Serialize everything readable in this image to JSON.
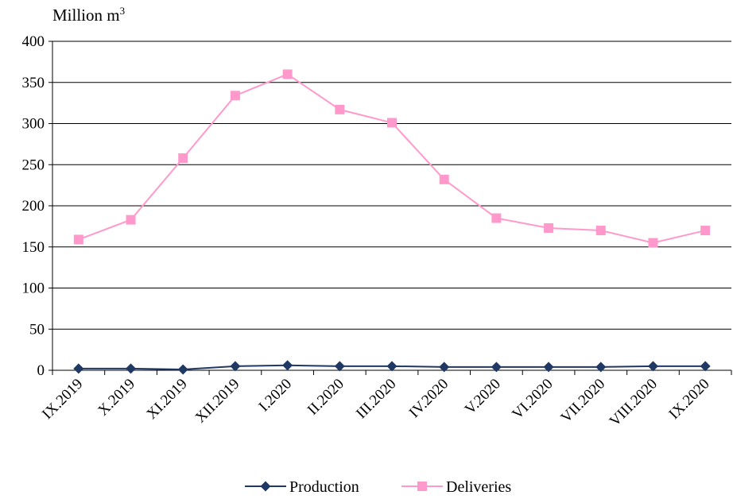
{
  "chart_data": {
    "type": "line",
    "ylabel": "Million m",
    "ylabel_sup": "3",
    "ylim": [
      0,
      400
    ],
    "yticks": [
      0,
      50,
      100,
      150,
      200,
      250,
      300,
      350,
      400
    ],
    "grid": true,
    "legend_position": "bottom-center",
    "categories": [
      "IX.2019",
      "X.2019",
      "XI.2019",
      "XII.2019",
      "I.2020",
      "II.2020",
      "III.2020",
      "IV.2020",
      "V.2020",
      "VI.2020",
      "VII.2020",
      "VIII.2020",
      "IX.2020"
    ],
    "series": [
      {
        "name": "Production",
        "color": "#1F3864",
        "marker": "diamond",
        "values": [
          2,
          2,
          1,
          5,
          6,
          5,
          5,
          4,
          4,
          4,
          4,
          5,
          5
        ]
      },
      {
        "name": "Deliveries",
        "color": "#FF99CC",
        "marker": "square",
        "values": [
          159,
          183,
          258,
          334,
          360,
          317,
          301,
          232,
          185,
          173,
          170,
          155,
          170
        ]
      }
    ]
  }
}
